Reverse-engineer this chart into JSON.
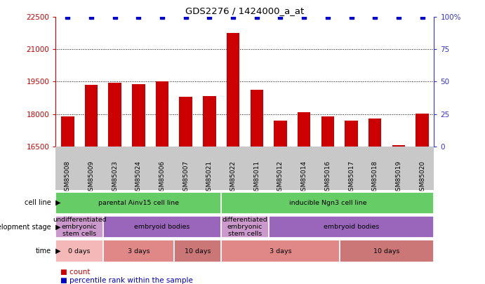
{
  "title": "GDS2276 / 1424000_a_at",
  "samples": [
    "GSM85008",
    "GSM85009",
    "GSM85023",
    "GSM85024",
    "GSM85006",
    "GSM85007",
    "GSM85021",
    "GSM85022",
    "GSM85011",
    "GSM85012",
    "GSM85014",
    "GSM85016",
    "GSM85017",
    "GSM85018",
    "GSM85019",
    "GSM85020"
  ],
  "counts": [
    17870,
    19350,
    19450,
    19400,
    19530,
    18800,
    18830,
    21750,
    19120,
    17690,
    18080,
    17880,
    17680,
    17790,
    16560,
    18010
  ],
  "percentile": [
    100,
    100,
    100,
    100,
    100,
    100,
    100,
    100,
    100,
    100,
    100,
    100,
    100,
    100,
    100,
    100
  ],
  "ylim_left": [
    16500,
    22500
  ],
  "ylim_right": [
    0,
    100
  ],
  "yticks_left": [
    16500,
    18000,
    19500,
    21000,
    22500
  ],
  "yticks_right": [
    0,
    25,
    50,
    75,
    100
  ],
  "ytick_labels_right": [
    "0",
    "25",
    "50",
    "75",
    "100%"
  ],
  "bar_color": "#cc0000",
  "percentile_color": "#3333cc",
  "dot_color": "#0000cc",
  "grid_dotted": [
    18000,
    19500,
    21000
  ],
  "cell_line_row": {
    "label": "cell line",
    "groups": [
      {
        "text": "parental Ainv15 cell line",
        "start": 0,
        "end": 7,
        "color": "#66cc66"
      },
      {
        "text": "inducible Ngn3 cell line",
        "start": 7,
        "end": 16,
        "color": "#66cc66"
      }
    ]
  },
  "dev_stage_row": {
    "label": "development stage",
    "groups": [
      {
        "text": "undifferentiated\nembryonic\nstem cells",
        "start": 0,
        "end": 2,
        "color": "#cc99cc"
      },
      {
        "text": "embryoid bodies",
        "start": 2,
        "end": 7,
        "color": "#9966bb"
      },
      {
        "text": "differentiated\nembryonic\nstem cells",
        "start": 7,
        "end": 9,
        "color": "#cc99cc"
      },
      {
        "text": "embryoid bodies",
        "start": 9,
        "end": 16,
        "color": "#9966bb"
      }
    ]
  },
  "time_row": {
    "label": "time",
    "groups": [
      {
        "text": "0 days",
        "start": 0,
        "end": 2,
        "color": "#f4b8b8"
      },
      {
        "text": "3 days",
        "start": 2,
        "end": 5,
        "color": "#e08888"
      },
      {
        "text": "10 days",
        "start": 5,
        "end": 7,
        "color": "#cc7777"
      },
      {
        "text": "3 days",
        "start": 7,
        "end": 12,
        "color": "#e08888"
      },
      {
        "text": "10 days",
        "start": 12,
        "end": 16,
        "color": "#cc7777"
      }
    ]
  },
  "xtick_bg_color": "#c8c8c8",
  "main_bg_color": "#ffffff",
  "legend": [
    {
      "color": "#cc0000",
      "label": "count"
    },
    {
      "color": "#0000cc",
      "label": "percentile rank within the sample"
    }
  ]
}
